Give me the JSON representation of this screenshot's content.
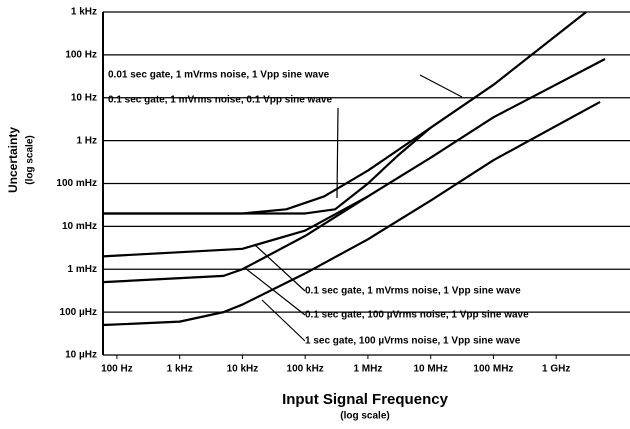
{
  "chart_data": {
    "type": "line",
    "x_label": "Input Signal Frequency",
    "x_label_sub": "(log scale)",
    "y_label": "Uncertainty",
    "y_label_sub": "(log scale)",
    "x_log": true,
    "y_log": true,
    "grid": "y",
    "xlim": [
      60,
      15000000000
    ],
    "ylim": [
      1e-05,
      1000
    ],
    "xticks": [
      {
        "value": 100,
        "label": "100 Hz"
      },
      {
        "value": 1000,
        "label": "1 kHz"
      },
      {
        "value": 10000,
        "label": "10 kHz"
      },
      {
        "value": 100000,
        "label": "100 kHz"
      },
      {
        "value": 1000000,
        "label": "1 MHz"
      },
      {
        "value": 10000000,
        "label": "10 MHz"
      },
      {
        "value": 100000000,
        "label": "100 MHz"
      },
      {
        "value": 1000000000,
        "label": "1 GHz"
      }
    ],
    "yticks": [
      {
        "value": 1000,
        "label": "1 kHz"
      },
      {
        "value": 100,
        "label": "100 Hz"
      },
      {
        "value": 10,
        "label": "10 Hz"
      },
      {
        "value": 1,
        "label": "1 Hz"
      },
      {
        "value": 0.1,
        "label": "100 mHz"
      },
      {
        "value": 0.01,
        "label": "10 mHz"
      },
      {
        "value": 0.001,
        "label": "1 mHz"
      },
      {
        "value": 0.0001,
        "label": "100 µHz"
      },
      {
        "value": 1e-05,
        "label": "10 µHz"
      }
    ],
    "series": [
      {
        "name": "0.01 sec gate, 1 mVrms noise, 1 Vpp sine wave",
        "color": "#000000",
        "x": [
          60,
          10000,
          50000,
          200000,
          1000000,
          10000000,
          100000000,
          3000000000
        ],
        "values": [
          0.02,
          0.02,
          0.025,
          0.05,
          0.2,
          2,
          20,
          1000
        ]
      },
      {
        "name": "0.1 sec gate, 1 mVrms noise, 0.1 Vpp sine wave",
        "color": "#000000",
        "x": [
          60,
          100000,
          300000,
          1000000,
          3000000,
          10000000
        ],
        "values": [
          0.02,
          0.02,
          0.025,
          0.1,
          0.45,
          2
        ]
      },
      {
        "name": "0.1 sec gate, 1 mVrms noise, 1 Vpp sine wave",
        "color": "#000000",
        "x": [
          60,
          10000,
          100000,
          1000000,
          10000000,
          100000000,
          6000000000
        ],
        "values": [
          0.002,
          0.003,
          0.008,
          0.05,
          0.4,
          3.5,
          80
        ]
      },
      {
        "name": "0.1 sec gate, 100 µVrms noise, 1 Vpp sine wave",
        "color": "#000000",
        "x": [
          60,
          5000,
          10000,
          100000,
          1000000
        ],
        "values": [
          0.0005,
          0.0007,
          0.001,
          0.006,
          0.05
        ]
      },
      {
        "name": "1 sec gate, 100 µVrms noise, 1 Vpp sine wave",
        "color": "#000000",
        "x": [
          60,
          1000,
          5000,
          10000,
          100000,
          1000000,
          10000000,
          100000000,
          5000000000
        ],
        "values": [
          5e-05,
          6e-05,
          0.0001,
          0.00015,
          0.0008,
          0.005,
          0.04,
          0.35,
          8
        ]
      }
    ]
  }
}
